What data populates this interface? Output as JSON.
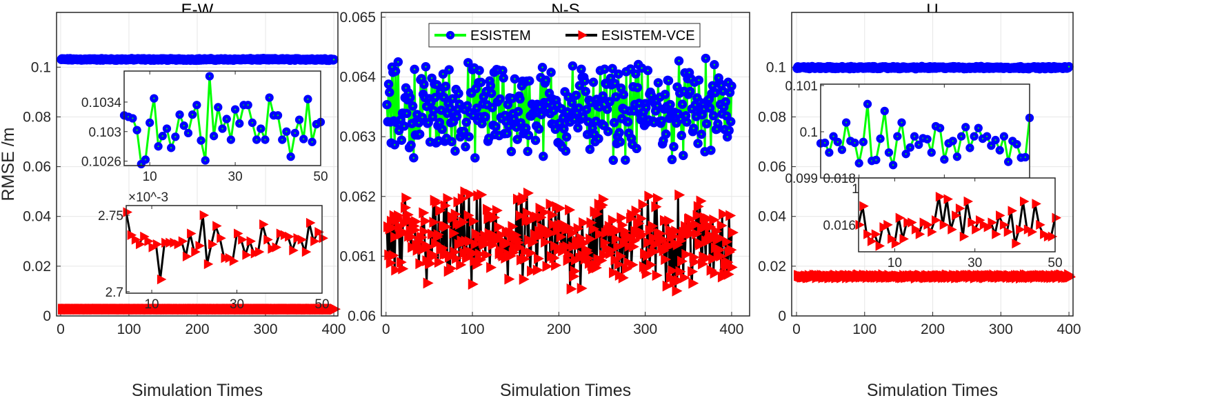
{
  "chart_data": [
    {
      "type": "line",
      "title": "E-W",
      "xlabel": "Simulation Times",
      "ylabel": "RMSE /m",
      "xlim": [
        0,
        400
      ],
      "ylim": [
        0,
        0.12
      ],
      "xticks": [
        "0",
        "100",
        "200",
        "300",
        "400"
      ],
      "yticks": [
        "0",
        "0.02",
        "0.04",
        "0.06",
        "0.08",
        "0.1"
      ],
      "ytick_values": [
        0,
        0.02,
        0.04,
        0.06,
        0.08,
        0.1
      ],
      "grid": true,
      "series": [
        {
          "name": "ESISTEM",
          "n": 400,
          "mean": 0.1031,
          "spread": 0.0004,
          "color": "#0000ff",
          "line_color": "#00ff00"
        },
        {
          "name": "ESISTEM-VCE",
          "n": 400,
          "mean": 0.00273,
          "spread": 3e-05,
          "color": "#ff0000",
          "line_color": "#000000"
        }
      ],
      "insets": [
        {
          "series": "ESISTEM",
          "x_start": 4,
          "xlim": [
            4,
            50
          ],
          "ylim": [
            0.10254,
            0.10382
          ],
          "xticks": [
            "10",
            "30",
            "50"
          ],
          "xtick_values": [
            10,
            30,
            50
          ],
          "yticks": [
            "0.1026",
            "0.103",
            "0.1034"
          ],
          "ytick_values": [
            0.1026,
            0.103,
            0.1034
          ],
          "values": [
            0.10322,
            0.1032,
            0.10318,
            0.10302,
            0.10256,
            0.10262,
            0.10312,
            0.10345,
            0.1028,
            0.10294,
            0.10304,
            0.10278,
            0.10293,
            0.10323,
            0.10308,
            0.10298,
            0.10323,
            0.10336,
            0.10288,
            0.10261,
            0.10375,
            0.10294,
            0.10333,
            0.10304,
            0.10317,
            0.10289,
            0.1033,
            0.10311,
            0.10336,
            0.10336,
            0.10312,
            0.10289,
            0.10304,
            0.10289,
            0.10346,
            0.10322,
            0.10322,
            0.10289,
            0.103,
            0.10266,
            0.10298,
            0.10316,
            0.1029,
            0.10344,
            0.10286,
            0.1031,
            0.10313
          ]
        },
        {
          "series": "ESISTEM-VCE",
          "x_start": 4,
          "xlim": [
            4,
            50
          ],
          "ylim": [
            2.699,
            2.7563
          ],
          "multiplier": "×10^-3",
          "xticks": [
            "10",
            "30",
            "50"
          ],
          "xtick_values": [
            10,
            30,
            50
          ],
          "yticks": [
            "2.7",
            "2.75"
          ],
          "ytick_values": [
            2.7,
            2.75
          ],
          "values": [
            2.752,
            2.737,
            2.734,
            2.731,
            2.736,
            2.733,
            2.729,
            2.731,
            2.708,
            2.732,
            2.732,
            2.732,
            2.731,
            2.733,
            2.723,
            2.738,
            2.726,
            2.73,
            2.75,
            2.718,
            2.731,
            2.743,
            2.735,
            2.722,
            2.722,
            2.72,
            2.738,
            2.734,
            2.724,
            2.733,
            2.725,
            2.726,
            2.744,
            2.734,
            2.728,
            2.729,
            2.738,
            2.737,
            2.736,
            2.727,
            2.735,
            2.734,
            2.726,
            2.745,
            2.733,
            2.739,
            2.735
          ]
        }
      ]
    },
    {
      "type": "line",
      "title": "N-S",
      "xlabel": "Simulation Times",
      "xlim": [
        0,
        400
      ],
      "ylim": [
        0.06,
        0.065
      ],
      "xticks": [
        "0",
        "100",
        "200",
        "300",
        "400"
      ],
      "yticks": [
        "0.06",
        "0.061",
        "0.062",
        "0.063",
        "0.064",
        "0.065"
      ],
      "ytick_values": [
        0.06,
        0.061,
        0.062,
        0.063,
        0.064,
        0.065
      ],
      "grid": true,
      "legend": {
        "position": "top",
        "entries": [
          "ESISTEM",
          "ESISTEM-VCE"
        ]
      },
      "series": [
        {
          "name": "ESISTEM",
          "n": 400,
          "mean": 0.06345,
          "spread": 0.0009,
          "color": "#0000ff",
          "line_color": "#00ff00"
        },
        {
          "name": "ESISTEM-VCE",
          "n": 400,
          "mean": 0.06125,
          "spread": 0.0009,
          "color": "#ff0000",
          "line_color": "#000000"
        }
      ]
    },
    {
      "type": "line",
      "title": "U",
      "xlabel": "Simulation Times",
      "xlim": [
        0,
        400
      ],
      "ylim": [
        0,
        0.12
      ],
      "xticks": [
        "0",
        "100",
        "200",
        "300",
        "400"
      ],
      "yticks": [
        "0",
        "0.02",
        "0.04",
        "0.06",
        "0.08",
        "0.1"
      ],
      "ytick_values": [
        0,
        0.02,
        0.04,
        0.06,
        0.08,
        0.1
      ],
      "grid": true,
      "series": [
        {
          "name": "ESISTEM",
          "n": 400,
          "mean": 0.0998,
          "spread": 0.0005,
          "color": "#0000ff",
          "line_color": "#00ff00"
        },
        {
          "name": "ESISTEM-VCE",
          "n": 400,
          "mean": 0.0159,
          "spread": 0.0007,
          "color": "#ff0000",
          "line_color": "#000000"
        }
      ],
      "insets": [
        {
          "series": "ESISTEM",
          "x_start": 1,
          "xlim": [
            1,
            50
          ],
          "ylim": [
            0.099,
            0.10103
          ],
          "xticks": [
            "10",
            "30",
            "50"
          ],
          "xtick_values": [
            10,
            30,
            50
          ],
          "yticks": [
            "0.099",
            "0.1",
            "0.101"
          ],
          "ytick_values": [
            0.099,
            0.1,
            0.101
          ],
          "values": [
            0.09975,
            0.09976,
            0.09955,
            0.0999,
            0.09978,
            0.09961,
            0.1002,
            0.0998,
            0.09976,
            0.09932,
            0.09978,
            0.1006,
            0.09937,
            0.09939,
            0.09985,
            0.10045,
            0.09955,
            0.09928,
            0.0999,
            0.1002,
            0.09952,
            0.09966,
            0.0999,
            0.09972,
            0.09986,
            0.09984,
            0.09955,
            0.10012,
            0.10008,
            0.0994,
            0.09975,
            0.0998,
            0.09946,
            0.0999,
            0.1001,
            0.09965,
            0.0999,
            0.10008,
            0.09985,
            0.0999,
            0.0997,
            0.09982,
            0.0996,
            0.0999,
            0.09935,
            0.0998,
            0.09973,
            0.09944,
            0.09945,
            0.1003
          ]
        },
        {
          "series": "ESISTEM-VCE",
          "x_start": 1,
          "xlim": [
            1,
            50
          ],
          "ylim": [
            0.01485,
            0.018
          ],
          "xticks": [
            "10",
            "30",
            "50"
          ],
          "xtick_values": [
            10,
            30,
            50
          ],
          "yticks": [
            "0.016",
            "0.018"
          ],
          "ytick_values": [
            0.016,
            0.018
          ],
          "values": [
            0.016,
            0.0168,
            0.0156,
            0.0153,
            0.0156,
            0.0151,
            0.0159,
            0.016,
            0.0154,
            0.0152,
            0.0163,
            0.0154,
            0.0161,
            0.0161,
            0.0158,
            0.0156,
            0.0161,
            0.016,
            0.0157,
            0.0162,
            0.0172,
            0.016,
            0.0171,
            0.0158,
            0.0164,
            0.0167,
            0.0155,
            0.017,
            0.0161,
            0.0158,
            0.0162,
            0.016,
            0.0159,
            0.0161,
            0.0156,
            0.0164,
            0.016,
            0.0157,
            0.0166,
            0.0152,
            0.0158,
            0.017,
            0.0158,
            0.0157,
            0.0169,
            0.016,
            0.0156,
            0.0155,
            0.0155,
            0.0163
          ]
        }
      ]
    }
  ]
}
